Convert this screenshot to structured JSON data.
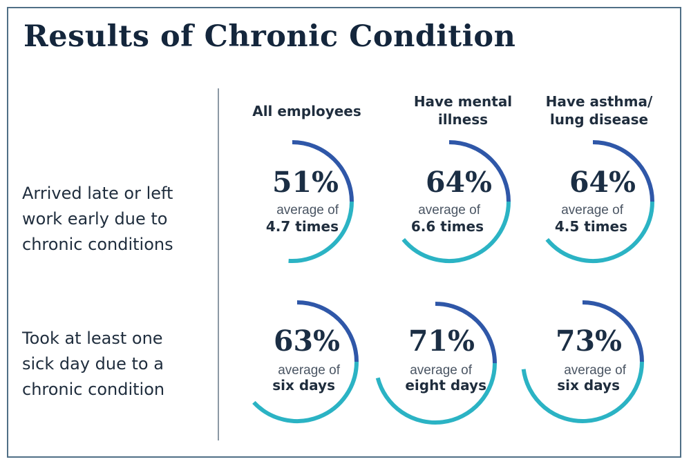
{
  "chart_data": {
    "type": "table",
    "title": "Results of Chronic Condition",
    "columns": [
      "All employees",
      "Have mental\nillness",
      "Have asthma/\nlung disease"
    ],
    "rows": [
      {
        "label": "Arrived late or left\nwork early due to\nchronic conditions",
        "cells": [
          {
            "percent": 51,
            "display": "51%",
            "avg_label": "average of",
            "avg_value": "4.7 times"
          },
          {
            "percent": 64,
            "display": "64%",
            "avg_label": "average of",
            "avg_value": "6.6 times"
          },
          {
            "percent": 64,
            "display": "64%",
            "avg_label": "average of",
            "avg_value": "4.5 times"
          }
        ]
      },
      {
        "label": "Took at least one\nsick day due to a\nchronic condition",
        "cells": [
          {
            "percent": 63,
            "display": "63%",
            "avg_label": "average of",
            "avg_value": "six days"
          },
          {
            "percent": 71,
            "display": "71%",
            "avg_label": "average of",
            "avg_value": "eight days"
          },
          {
            "percent": 73,
            "display": "73%",
            "avg_label": "average of",
            "avg_value": "six days"
          }
        ]
      }
    ],
    "colors": {
      "arc_dark": "#2f57a8",
      "arc_light": "#2bb3c4"
    }
  }
}
